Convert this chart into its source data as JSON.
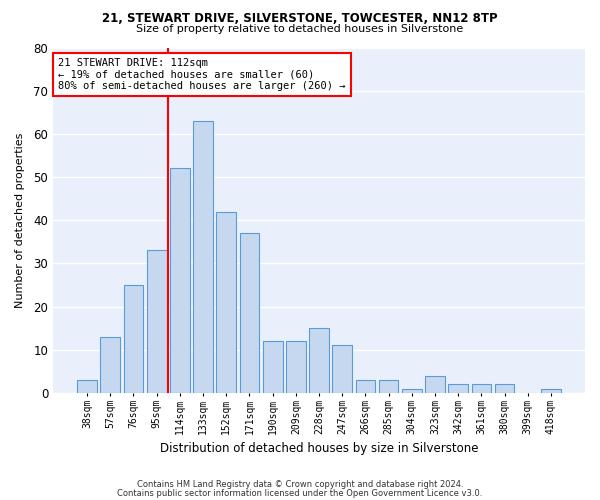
{
  "title1": "21, STEWART DRIVE, SILVERSTONE, TOWCESTER, NN12 8TP",
  "title2": "Size of property relative to detached houses in Silverstone",
  "xlabel": "Distribution of detached houses by size in Silverstone",
  "ylabel": "Number of detached properties",
  "categories": [
    "38sqm",
    "57sqm",
    "76sqm",
    "95sqm",
    "114sqm",
    "133sqm",
    "152sqm",
    "171sqm",
    "190sqm",
    "209sqm",
    "228sqm",
    "247sqm",
    "266sqm",
    "285sqm",
    "304sqm",
    "323sqm",
    "342sqm",
    "361sqm",
    "380sqm",
    "399sqm",
    "418sqm"
  ],
  "values": [
    3,
    13,
    25,
    33,
    52,
    63,
    42,
    37,
    12,
    12,
    15,
    11,
    3,
    3,
    1,
    4,
    2,
    2,
    2,
    0,
    1
  ],
  "bar_color": "#c5d8f0",
  "bar_edge_color": "#5b9bd5",
  "annotation_text": "21 STEWART DRIVE: 112sqm\n← 19% of detached houses are smaller (60)\n80% of semi-detached houses are larger (260) →",
  "annotation_box_color": "white",
  "annotation_box_edge_color": "red",
  "vline_color": "red",
  "vline_x_index": 3.5,
  "ylim": [
    0,
    80
  ],
  "yticks": [
    0,
    10,
    20,
    30,
    40,
    50,
    60,
    70,
    80
  ],
  "background_color": "#eaf0fb",
  "grid_color": "white",
  "footer1": "Contains HM Land Registry data © Crown copyright and database right 2024.",
  "footer2": "Contains public sector information licensed under the Open Government Licence v3.0."
}
